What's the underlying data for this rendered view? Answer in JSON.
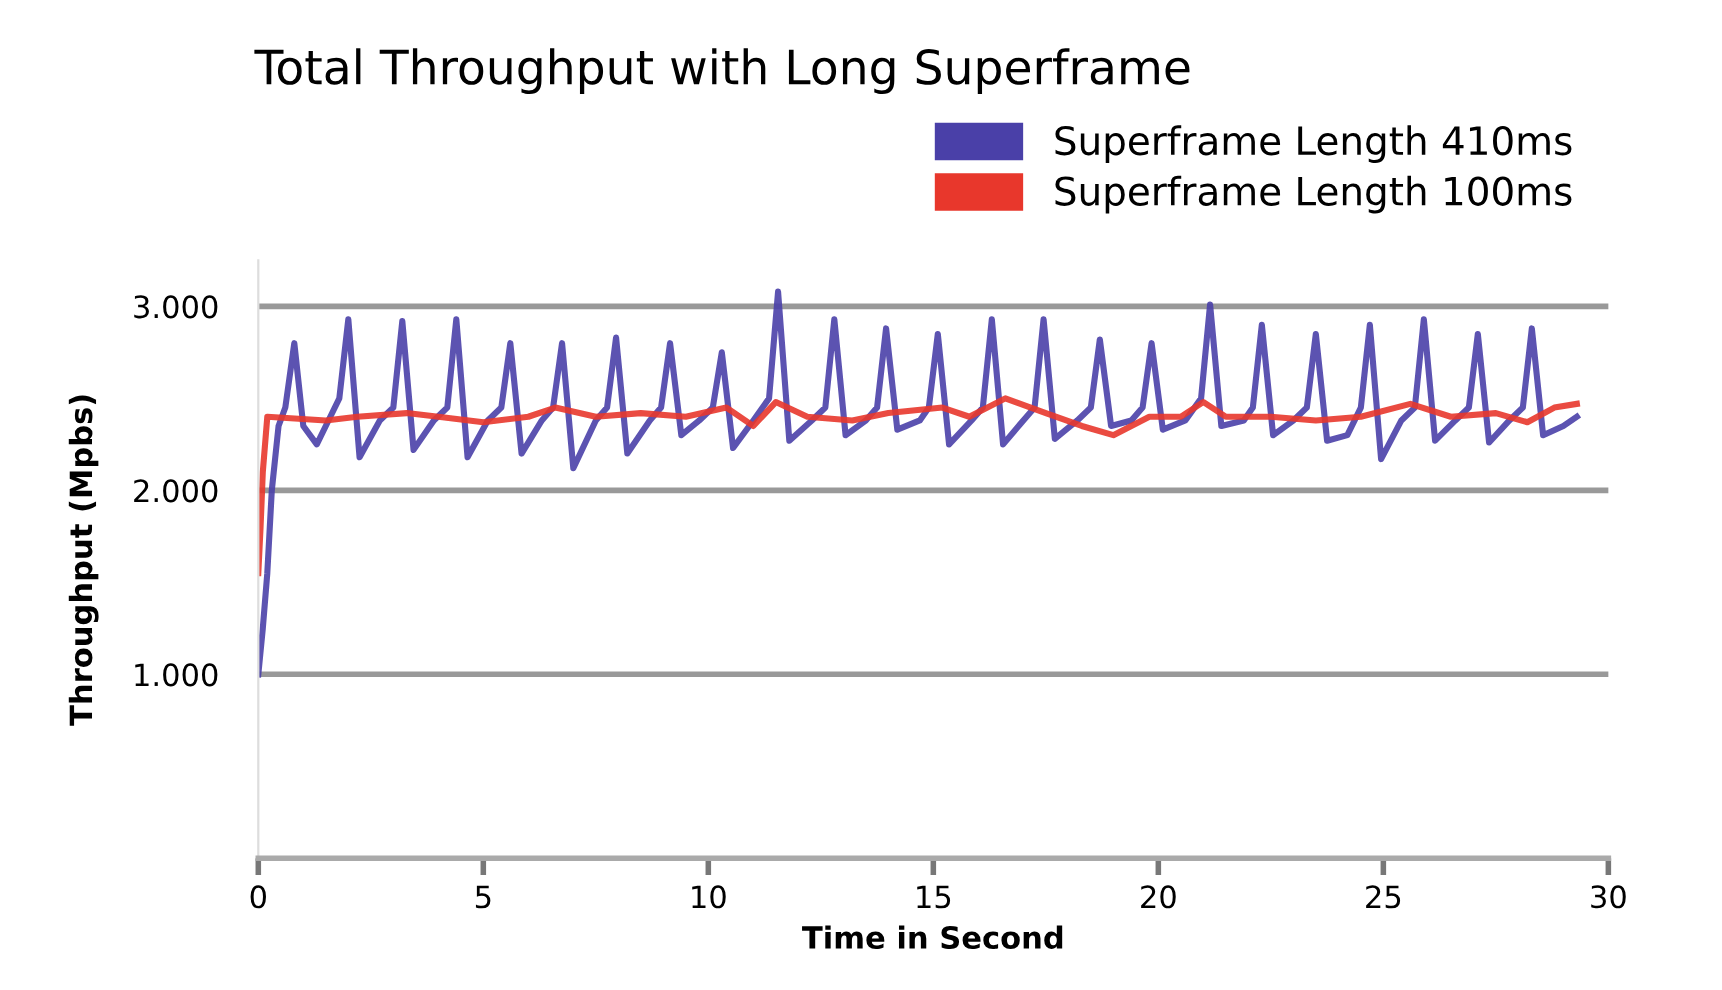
{
  "chart_data": {
    "type": "line",
    "title": "Total Throughput with Long Superframe",
    "xlabel": "Time in Second",
    "ylabel": "Throughput (Mpbs)",
    "xlim": [
      0,
      30
    ],
    "xticks": [
      0,
      5,
      10,
      15,
      20,
      25,
      30
    ],
    "ylim": [
      0,
      3250
    ],
    "yticks": [
      {
        "value": 1000,
        "label": "1.000"
      },
      {
        "value": 2000,
        "label": "2.000"
      },
      {
        "value": 3000,
        "label": "3.000"
      }
    ],
    "grid": "y",
    "legend": "top right",
    "marker": "none",
    "line_style": "solid",
    "series": [
      {
        "name": "Superframe Length 410ms",
        "color": "#4a40a8",
        "x": [
          0,
          0.1,
          0.2,
          0.3,
          0.45,
          0.6,
          0.8,
          1.0,
          1.3,
          1.6,
          1.8,
          2.0,
          2.25,
          2.7,
          3.0,
          3.2,
          3.45,
          3.9,
          4.2,
          4.4,
          4.65,
          5.1,
          5.4,
          5.6,
          5.85,
          6.3,
          6.55,
          6.75,
          7.0,
          7.5,
          7.75,
          7.95,
          8.2,
          8.7,
          8.95,
          9.15,
          9.4,
          9.8,
          10.1,
          10.3,
          10.55,
          11.0,
          11.35,
          11.55,
          11.8,
          12.3,
          12.6,
          12.8,
          13.05,
          13.5,
          13.75,
          13.95,
          14.2,
          14.7,
          14.9,
          15.1,
          15.35,
          15.85,
          16.1,
          16.3,
          16.55,
          17.0,
          17.25,
          17.45,
          17.7,
          18.2,
          18.5,
          18.7,
          18.95,
          19.4,
          19.65,
          19.85,
          20.1,
          20.6,
          20.95,
          21.15,
          21.4,
          21.9,
          22.1,
          22.3,
          22.55,
          23.0,
          23.3,
          23.5,
          23.75,
          24.2,
          24.5,
          24.7,
          24.95,
          25.4,
          25.7,
          25.9,
          26.15,
          26.6,
          26.9,
          27.1,
          27.35,
          27.8,
          28.1,
          28.3,
          28.55,
          29.0,
          29.3
        ],
        "values": [
          1000,
          1250,
          1550,
          2000,
          2350,
          2450,
          2800,
          2350,
          2250,
          2400,
          2500,
          2930,
          2180,
          2380,
          2450,
          2920,
          2220,
          2380,
          2450,
          2930,
          2180,
          2380,
          2450,
          2800,
          2200,
          2380,
          2450,
          2800,
          2120,
          2380,
          2450,
          2830,
          2200,
          2380,
          2450,
          2800,
          2300,
          2380,
          2450,
          2750,
          2230,
          2380,
          2500,
          3080,
          2270,
          2380,
          2450,
          2930,
          2300,
          2380,
          2450,
          2880,
          2330,
          2380,
          2450,
          2850,
          2250,
          2380,
          2450,
          2930,
          2250,
          2380,
          2450,
          2930,
          2280,
          2380,
          2450,
          2820,
          2350,
          2380,
          2450,
          2800,
          2330,
          2380,
          2500,
          3010,
          2350,
          2380,
          2450,
          2900,
          2300,
          2380,
          2450,
          2850,
          2270,
          2300,
          2450,
          2900,
          2170,
          2380,
          2450,
          2930,
          2270,
          2380,
          2450,
          2850,
          2260,
          2380,
          2450,
          2880,
          2300,
          2350,
          2400
        ]
      },
      {
        "name": "Superframe Length 100ms",
        "color": "#e8372c",
        "x": [
          0,
          0.05,
          0.1,
          0.2,
          1.5,
          2.2,
          3.3,
          4.0,
          5.0,
          6.0,
          6.6,
          7.5,
          8.5,
          9.5,
          10.4,
          11.0,
          11.5,
          12.2,
          13.2,
          14.0,
          15.2,
          15.8,
          16.6,
          17.5,
          18.3,
          19.0,
          19.8,
          20.5,
          21.0,
          21.5,
          22.5,
          23.5,
          24.5,
          25.6,
          26.5,
          27.5,
          28.2,
          28.8,
          29.3
        ],
        "values": [
          1550,
          1800,
          2100,
          2400,
          2380,
          2400,
          2420,
          2400,
          2370,
          2400,
          2450,
          2400,
          2420,
          2400,
          2450,
          2350,
          2480,
          2400,
          2380,
          2420,
          2450,
          2400,
          2500,
          2420,
          2350,
          2300,
          2400,
          2400,
          2480,
          2400,
          2400,
          2380,
          2400,
          2470,
          2400,
          2420,
          2370,
          2450,
          2470
        ]
      }
    ]
  }
}
